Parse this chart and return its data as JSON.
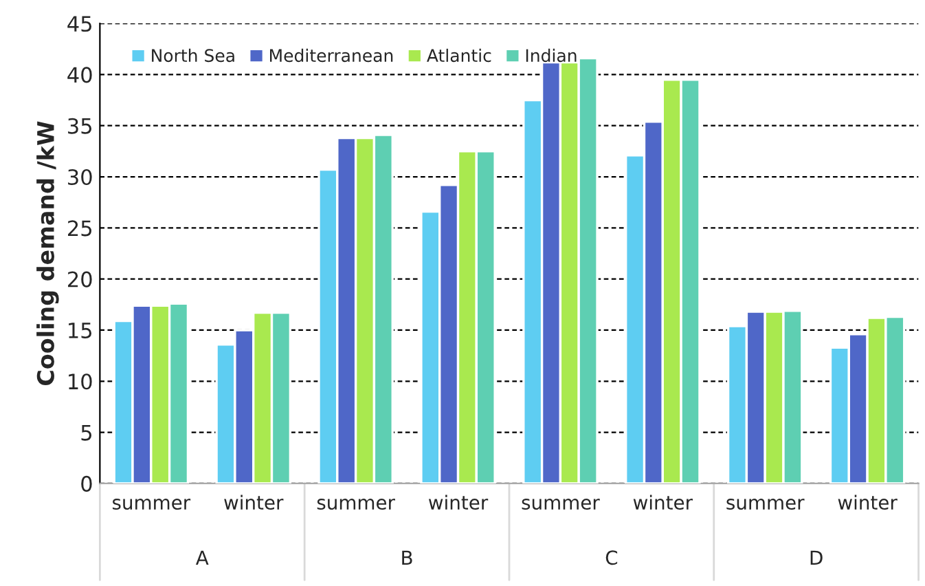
{
  "chart_data": {
    "type": "bar",
    "ylabel": "Cooling demand /kW",
    "categories": [
      "summer",
      "winter",
      "summer",
      "winter",
      "summer",
      "winter",
      "summer",
      "winter"
    ],
    "annotations": [
      "A",
      "B",
      "C",
      "D"
    ],
    "series": [
      {
        "name": "North Sea",
        "color": "#5ecdf2",
        "values": [
          15.9,
          13.6,
          30.7,
          26.6,
          37.5,
          32.1,
          15.4,
          13.3
        ]
      },
      {
        "name": "Mediterranean",
        "color": "#4f67c8",
        "values": [
          17.4,
          15.0,
          33.8,
          29.2,
          41.2,
          35.4,
          16.8,
          14.6
        ]
      },
      {
        "name": "Atlantic",
        "color": "#a9e94f",
        "values": [
          17.4,
          16.7,
          33.8,
          32.5,
          41.2,
          39.5,
          16.8,
          16.2
        ]
      },
      {
        "name": "Indian",
        "color": "#5ecfb2",
        "values": [
          17.6,
          16.7,
          34.1,
          32.5,
          41.6,
          39.5,
          16.9,
          16.3
        ]
      }
    ],
    "ylim": [
      0,
      45
    ],
    "yticks": [
      0,
      5,
      10,
      15,
      20,
      25,
      30,
      35,
      40,
      45
    ],
    "grid": "y",
    "legend": "top left"
  }
}
